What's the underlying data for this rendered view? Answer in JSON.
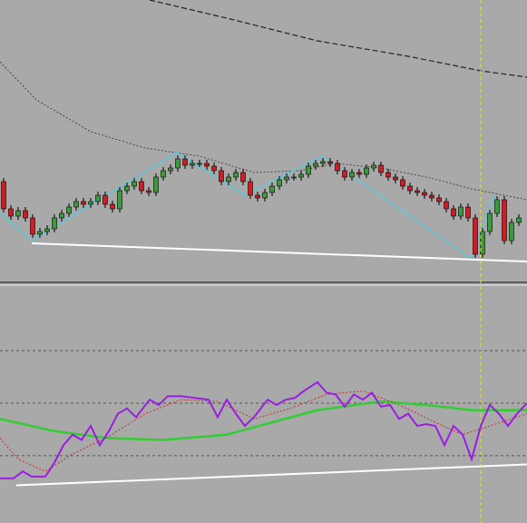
{
  "chart_data": [
    {
      "type": "candlestick",
      "xlim": [
        0,
        581
      ],
      "ylim": [
        0,
        310
      ],
      "up_color": "#3c9a3c",
      "down_color": "#d01c24",
      "cursor_x": 530,
      "cursor_color": "#e8e800",
      "x": [
        4,
        12,
        20,
        28,
        36,
        44,
        52,
        60,
        68,
        76,
        84,
        92,
        100,
        108,
        116,
        124,
        132,
        140,
        148,
        156,
        164,
        172,
        180,
        188,
        196,
        204,
        212,
        220,
        228,
        236,
        244,
        252,
        260,
        268,
        276,
        284,
        292,
        300,
        308,
        316,
        324,
        332,
        340,
        348,
        356,
        364,
        372,
        380,
        388,
        396,
        404,
        412,
        420,
        428,
        436,
        444,
        452,
        460,
        468,
        476,
        484,
        492,
        500,
        508,
        516,
        524,
        532,
        540,
        548,
        556,
        564,
        572
      ],
      "opens": [
        110,
        80,
        72,
        78,
        70,
        52,
        55,
        58,
        70,
        75,
        82,
        88,
        85,
        88,
        95,
        85,
        80,
        100,
        105,
        110,
        100,
        98,
        115,
        122,
        125,
        135,
        128,
        130,
        130,
        127,
        122,
        110,
        115,
        120,
        110,
        95,
        92,
        98,
        105,
        112,
        115,
        115,
        118,
        127,
        130,
        132,
        130,
        122,
        115,
        120,
        118,
        125,
        128,
        120,
        115,
        112,
        105,
        100,
        98,
        95,
        92,
        88,
        80,
        72,
        82,
        70,
        30,
        55,
        75,
        90,
        45,
        65
      ],
      "highs": [
        114,
        84,
        82,
        82,
        74,
        59,
        62,
        74,
        79,
        86,
        92,
        92,
        92,
        99,
        99,
        89,
        104,
        109,
        114,
        114,
        104,
        119,
        126,
        129,
        139,
        139,
        134,
        134,
        134,
        131,
        126,
        119,
        124,
        124,
        114,
        99,
        102,
        109,
        116,
        119,
        119,
        122,
        131,
        134,
        136,
        136,
        134,
        126,
        124,
        124,
        129,
        132,
        132,
        124,
        119,
        116,
        109,
        104,
        102,
        99,
        96,
        92,
        84,
        86,
        86,
        74,
        59,
        79,
        94,
        94,
        69,
        74
      ],
      "lows": [
        76,
        68,
        68,
        66,
        48,
        48,
        51,
        54,
        66,
        71,
        78,
        81,
        81,
        84,
        81,
        76,
        76,
        96,
        101,
        96,
        94,
        94,
        111,
        118,
        121,
        124,
        124,
        126,
        123,
        118,
        106,
        106,
        111,
        106,
        91,
        88,
        88,
        94,
        101,
        108,
        111,
        111,
        114,
        123,
        126,
        126,
        118,
        111,
        111,
        114,
        114,
        121,
        116,
        111,
        108,
        101,
        96,
        94,
        91,
        88,
        84,
        76,
        68,
        68,
        66,
        26,
        26,
        51,
        71,
        41,
        41,
        61
      ],
      "closes": [
        80,
        72,
        78,
        70,
        52,
        55,
        58,
        70,
        75,
        82,
        88,
        85,
        88,
        95,
        85,
        80,
        100,
        105,
        110,
        100,
        98,
        115,
        122,
        125,
        135,
        128,
        130,
        130,
        127,
        122,
        110,
        115,
        120,
        110,
        95,
        92,
        98,
        105,
        112,
        115,
        115,
        118,
        127,
        130,
        132,
        130,
        122,
        115,
        120,
        118,
        125,
        128,
        120,
        115,
        112,
        105,
        100,
        98,
        95,
        92,
        88,
        80,
        72,
        82,
        70,
        30,
        55,
        75,
        90,
        45,
        65,
        70
      ],
      "series": [
        {
          "color": "#222222",
          "style": "dashed",
          "width": 1.2,
          "x": [
            165,
            250,
            350,
            450,
            530,
            581
          ],
          "values": [
            310,
            290,
            265,
            248,
            232,
            225
          ]
        },
        {
          "color": "#333333",
          "style": "dotted",
          "width": 0.8,
          "x": [
            0,
            40,
            100,
            160,
            220,
            280,
            330,
            370,
            420,
            470,
            520,
            581
          ],
          "values": [
            242,
            200,
            165,
            147,
            138,
            120,
            122,
            130,
            125,
            115,
            102,
            90
          ]
        },
        {
          "color": "#5fc8d8",
          "style": "solid",
          "width": 1.5,
          "x": [
            0,
            35,
            195,
            270,
            355,
            390,
            520,
            545
          ],
          "values": [
            75,
            45,
            142,
            95,
            138,
            115,
            25,
            95
          ]
        },
        {
          "color": "#ffffff",
          "style": "solid",
          "width": 2,
          "x": [
            35,
            581
          ],
          "values": [
            42,
            22
          ]
        }
      ]
    },
    {
      "type": "line",
      "xlim": [
        0,
        581
      ],
      "ylim": [
        -18,
        117
      ],
      "levels": [
        80,
        50,
        20
      ],
      "level_color": "#555555",
      "series": [
        {
          "color": "#33cc33",
          "style": "solid",
          "width": 2.5,
          "x": [
            0,
            60,
            120,
            180,
            250,
            300,
            350,
            420,
            470,
            520,
            581
          ],
          "values": [
            41,
            34,
            30,
            29,
            32,
            39,
            46,
            51,
            49,
            46,
            46
          ]
        },
        {
          "color": "#c83030",
          "style": "dotted",
          "width": 1,
          "x": [
            0,
            20,
            50,
            80,
            120,
            160,
            200,
            240,
            280,
            320,
            360,
            400,
            440,
            480,
            510,
            540,
            581
          ],
          "values": [
            30,
            18,
            11,
            21,
            31,
            44,
            52,
            51,
            41,
            47,
            55,
            57,
            49,
            39,
            32,
            37,
            44
          ]
        },
        {
          "color": "#9a1ee0",
          "style": "solid",
          "width": 2,
          "x": [
            0,
            15,
            25,
            35,
            50,
            60,
            70,
            80,
            90,
            100,
            110,
            120,
            130,
            140,
            150,
            165,
            175,
            185,
            200,
            230,
            240,
            250,
            260,
            270,
            280,
            295,
            305,
            315,
            325,
            335,
            350,
            360,
            370,
            380,
            390,
            400,
            410,
            420,
            430,
            440,
            450,
            460,
            470,
            480,
            490,
            500,
            510,
            520,
            530,
            540,
            550,
            560,
            570,
            581
          ],
          "values": [
            7,
            7,
            11,
            8,
            8,
            16,
            26,
            32,
            29,
            37,
            26,
            34,
            44,
            47,
            42,
            52,
            49,
            54,
            54,
            52,
            42,
            52,
            44,
            37,
            42,
            52,
            49,
            52,
            53,
            57,
            62,
            56,
            55,
            48,
            55,
            52,
            56,
            48,
            49,
            41,
            44,
            37,
            38,
            37,
            26,
            37,
            32,
            18,
            37,
            49,
            44,
            37,
            44,
            50
          ]
        },
        {
          "color": "#ffffff",
          "style": "solid",
          "width": 2,
          "x": [
            18,
            581
          ],
          "values": [
            3,
            15
          ]
        }
      ]
    }
  ]
}
